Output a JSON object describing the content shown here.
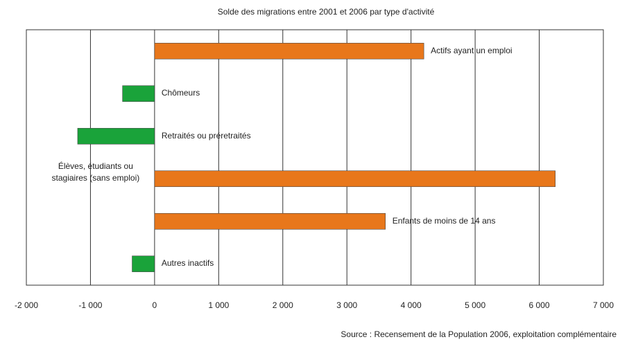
{
  "chart_data": {
    "type": "barh",
    "title": "Solde des migrations entre 2001 et 2006 par type d'activité",
    "categories": [
      "Actifs ayant un emploi",
      "Chômeurs",
      "Retraités ou préretraités",
      "Élèves, étudiants ou stagiaires (sans emploi)",
      "Enfants de moins de 14 ans",
      "Autres inactifs"
    ],
    "values": [
      4200,
      -500,
      -1200,
      6250,
      3600,
      -350
    ],
    "colors": [
      "#e8771b",
      "#1aa33a",
      "#1aa33a",
      "#e8771b",
      "#e8771b",
      "#1aa33a"
    ],
    "xlim": [
      -2000,
      7000
    ],
    "xticks": [
      {
        "value": -2000,
        "label": "-2 000"
      },
      {
        "value": -1000,
        "label": "-1 000"
      },
      0,
      {
        "value": 1000,
        "label": "1 000"
      },
      {
        "value": 2000,
        "label": "2 000"
      },
      {
        "value": 3000,
        "label": "3 000"
      },
      {
        "value": 4000,
        "label": "4 000"
      },
      {
        "value": 5000,
        "label": "5 000"
      },
      {
        "value": 6000,
        "label": "6 000"
      },
      {
        "value": 7000,
        "label": "7 000"
      }
    ],
    "grid": true,
    "source": "Source : Recensement  de la Population 2006, exploitation complémentaire"
  }
}
